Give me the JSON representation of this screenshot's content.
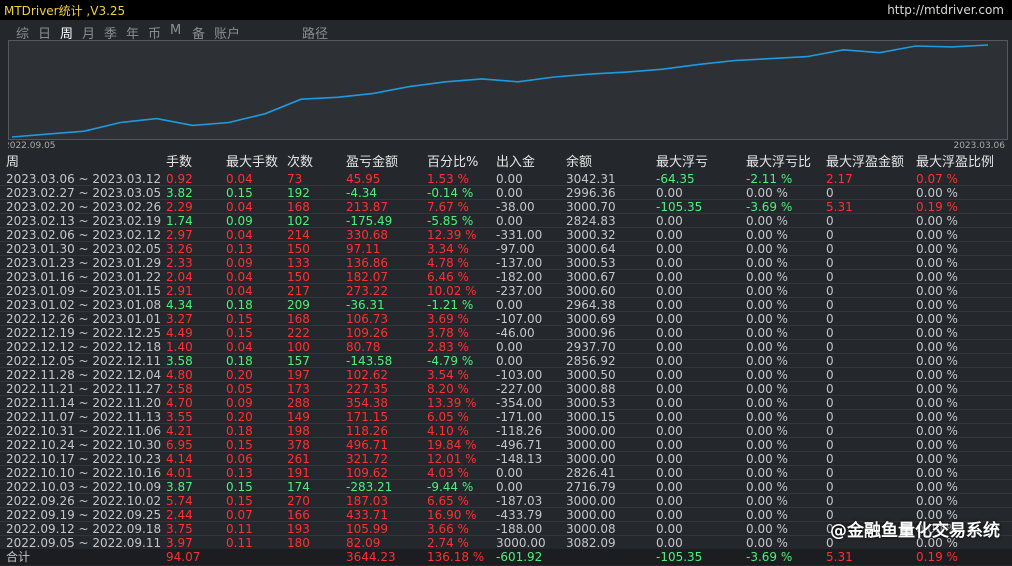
{
  "header": {
    "title": "MTDriver统计 ,V3.25",
    "link": "http://mtdriver.com"
  },
  "tabs": [
    "综",
    "日",
    "周",
    "月",
    "季",
    "年",
    "币",
    "M",
    "备",
    "账户",
    "路径"
  ],
  "chart_data": {
    "type": "line",
    "x_start_label": "2022.09.05",
    "x_end_label": "2023.03.06",
    "color": "#1e9be0",
    "values": [
      3,
      6,
      9,
      18,
      22,
      15,
      18,
      27,
      42,
      44,
      48,
      55,
      60,
      63,
      60,
      65,
      68,
      70,
      73,
      78,
      82,
      84,
      86,
      93,
      90,
      97,
      96,
      98
    ]
  },
  "table": {
    "columns": [
      "周",
      "手数",
      "最大手数",
      "次数",
      "盈亏金额",
      "百分比%",
      "出入金",
      "余额",
      "最大浮亏",
      "最大浮亏比",
      "最大浮盈金额",
      "最大浮盈比例"
    ],
    "rows": [
      [
        "2023.03.06 ~ 2023.03.12",
        "0.92",
        "0.04",
        "73",
        "45.95",
        "1.53 %",
        "0.00",
        "3042.31",
        "-64.35",
        "-2.11 %",
        "2.17",
        "0.07 %"
      ],
      [
        "2023.02.27 ~ 2023.03.05",
        "3.82",
        "0.15",
        "192",
        "-4.34",
        "-0.14 %",
        "0.00",
        "2996.36",
        "0.00",
        "0.00 %",
        "0",
        "0.00 %"
      ],
      [
        "2023.02.20 ~ 2023.02.26",
        "2.29",
        "0.04",
        "168",
        "213.87",
        "7.67 %",
        "-38.00",
        "3000.70",
        "-105.35",
        "-3.69 %",
        "5.31",
        "0.19 %"
      ],
      [
        "2023.02.13 ~ 2023.02.19",
        "1.74",
        "0.09",
        "102",
        "-175.49",
        "-5.85 %",
        "0.00",
        "2824.83",
        "0.00",
        "0.00 %",
        "0",
        "0.00 %"
      ],
      [
        "2023.02.06 ~ 2023.02.12",
        "2.97",
        "0.04",
        "214",
        "330.68",
        "12.39 %",
        "-331.00",
        "3000.32",
        "0.00",
        "0.00 %",
        "0",
        "0.00 %"
      ],
      [
        "2023.01.30 ~ 2023.02.05",
        "3.26",
        "0.13",
        "150",
        "97.11",
        "3.34 %",
        "-97.00",
        "3000.64",
        "0.00",
        "0.00 %",
        "0",
        "0.00 %"
      ],
      [
        "2023.01.23 ~ 2023.01.29",
        "2.33",
        "0.09",
        "133",
        "136.86",
        "4.78 %",
        "-137.00",
        "3000.53",
        "0.00",
        "0.00 %",
        "0",
        "0.00 %"
      ],
      [
        "2023.01.16 ~ 2023.01.22",
        "2.04",
        "0.04",
        "150",
        "182.07",
        "6.46 %",
        "-182.00",
        "3000.67",
        "0.00",
        "0.00 %",
        "0",
        "0.00 %"
      ],
      [
        "2023.01.09 ~ 2023.01.15",
        "2.91",
        "0.04",
        "217",
        "273.22",
        "10.02 %",
        "-237.00",
        "3000.60",
        "0.00",
        "0.00 %",
        "0",
        "0.00 %"
      ],
      [
        "2023.01.02 ~ 2023.01.08",
        "4.34",
        "0.18",
        "209",
        "-36.31",
        "-1.21 %",
        "0.00",
        "2964.38",
        "0.00",
        "0.00 %",
        "0",
        "0.00 %"
      ],
      [
        "2022.12.26 ~ 2023.01.01",
        "3.27",
        "0.15",
        "168",
        "106.73",
        "3.69 %",
        "-107.00",
        "3000.69",
        "0.00",
        "0.00 %",
        "0",
        "0.00 %"
      ],
      [
        "2022.12.19 ~ 2022.12.25",
        "4.49",
        "0.15",
        "222",
        "109.26",
        "3.78 %",
        "-46.00",
        "3000.96",
        "0.00",
        "0.00 %",
        "0",
        "0.00 %"
      ],
      [
        "2022.12.12 ~ 2022.12.18",
        "1.40",
        "0.04",
        "100",
        "80.78",
        "2.83 %",
        "0.00",
        "2937.70",
        "0.00",
        "0.00 %",
        "0",
        "0.00 %"
      ],
      [
        "2022.12.05 ~ 2022.12.11",
        "3.58",
        "0.18",
        "157",
        "-143.58",
        "-4.79 %",
        "0.00",
        "2856.92",
        "0.00",
        "0.00 %",
        "0",
        "0.00 %"
      ],
      [
        "2022.11.28 ~ 2022.12.04",
        "4.80",
        "0.20",
        "197",
        "102.62",
        "3.54 %",
        "-103.00",
        "3000.50",
        "0.00",
        "0.00 %",
        "0",
        "0.00 %"
      ],
      [
        "2022.11.21 ~ 2022.11.27",
        "2.58",
        "0.05",
        "173",
        "227.35",
        "8.20 %",
        "-227.00",
        "3000.88",
        "0.00",
        "0.00 %",
        "0",
        "0.00 %"
      ],
      [
        "2022.11.14 ~ 2022.11.20",
        "4.70",
        "0.09",
        "288",
        "354.38",
        "13.39 %",
        "-354.00",
        "3000.53",
        "0.00",
        "0.00 %",
        "0",
        "0.00 %"
      ],
      [
        "2022.11.07 ~ 2022.11.13",
        "3.55",
        "0.20",
        "149",
        "171.15",
        "6.05 %",
        "-171.00",
        "3000.15",
        "0.00",
        "0.00 %",
        "0",
        "0.00 %"
      ],
      [
        "2022.10.31 ~ 2022.11.06",
        "4.21",
        "0.18",
        "198",
        "118.26",
        "4.10 %",
        "-118.26",
        "3000.00",
        "0.00",
        "0.00 %",
        "0",
        "0.00 %"
      ],
      [
        "2022.10.24 ~ 2022.10.30",
        "6.95",
        "0.15",
        "378",
        "496.71",
        "19.84 %",
        "-496.71",
        "3000.00",
        "0.00",
        "0.00 %",
        "0",
        "0.00 %"
      ],
      [
        "2022.10.17 ~ 2022.10.23",
        "4.14",
        "0.06",
        "261",
        "321.72",
        "12.01 %",
        "-148.13",
        "3000.00",
        "0.00",
        "0.00 %",
        "0",
        "0.00 %"
      ],
      [
        "2022.10.10 ~ 2022.10.16",
        "4.01",
        "0.13",
        "191",
        "109.62",
        "4.03 %",
        "0.00",
        "2826.41",
        "0.00",
        "0.00 %",
        "0",
        "0.00 %"
      ],
      [
        "2022.10.03 ~ 2022.10.09",
        "3.87",
        "0.15",
        "174",
        "-283.21",
        "-9.44 %",
        "0.00",
        "2716.79",
        "0.00",
        "0.00 %",
        "0",
        "0.00 %"
      ],
      [
        "2022.09.26 ~ 2022.10.02",
        "5.74",
        "0.15",
        "270",
        "187.03",
        "6.65 %",
        "-187.03",
        "3000.00",
        "0.00",
        "0.00 %",
        "0",
        "0.00 %"
      ],
      [
        "2022.09.19 ~ 2022.09.25",
        "2.44",
        "0.07",
        "166",
        "433.71",
        "16.90 %",
        "-433.79",
        "3000.00",
        "0.00",
        "0.00 %",
        "0",
        "0.00 %"
      ],
      [
        "2022.09.12 ~ 2022.09.18",
        "3.75",
        "0.11",
        "193",
        "105.99",
        "3.66 %",
        "-188.00",
        "3000.08",
        "0.00",
        "0.00 %",
        "0",
        "0.00 %"
      ],
      [
        "2022.09.05 ~ 2022.09.11",
        "3.97",
        "0.11",
        "180",
        "82.09",
        "2.74 %",
        "3000.00",
        "3082.09",
        "0.00",
        "0.00 %",
        "0",
        "0.00 %"
      ]
    ],
    "total": [
      "合计",
      "94.07",
      null,
      null,
      "3644.23",
      "136.18 %",
      "-601.92",
      null,
      "-105.35",
      "-3.69 %",
      "5.31",
      "0.19 %"
    ]
  },
  "watermark": "@金融鱼量化交易系统"
}
